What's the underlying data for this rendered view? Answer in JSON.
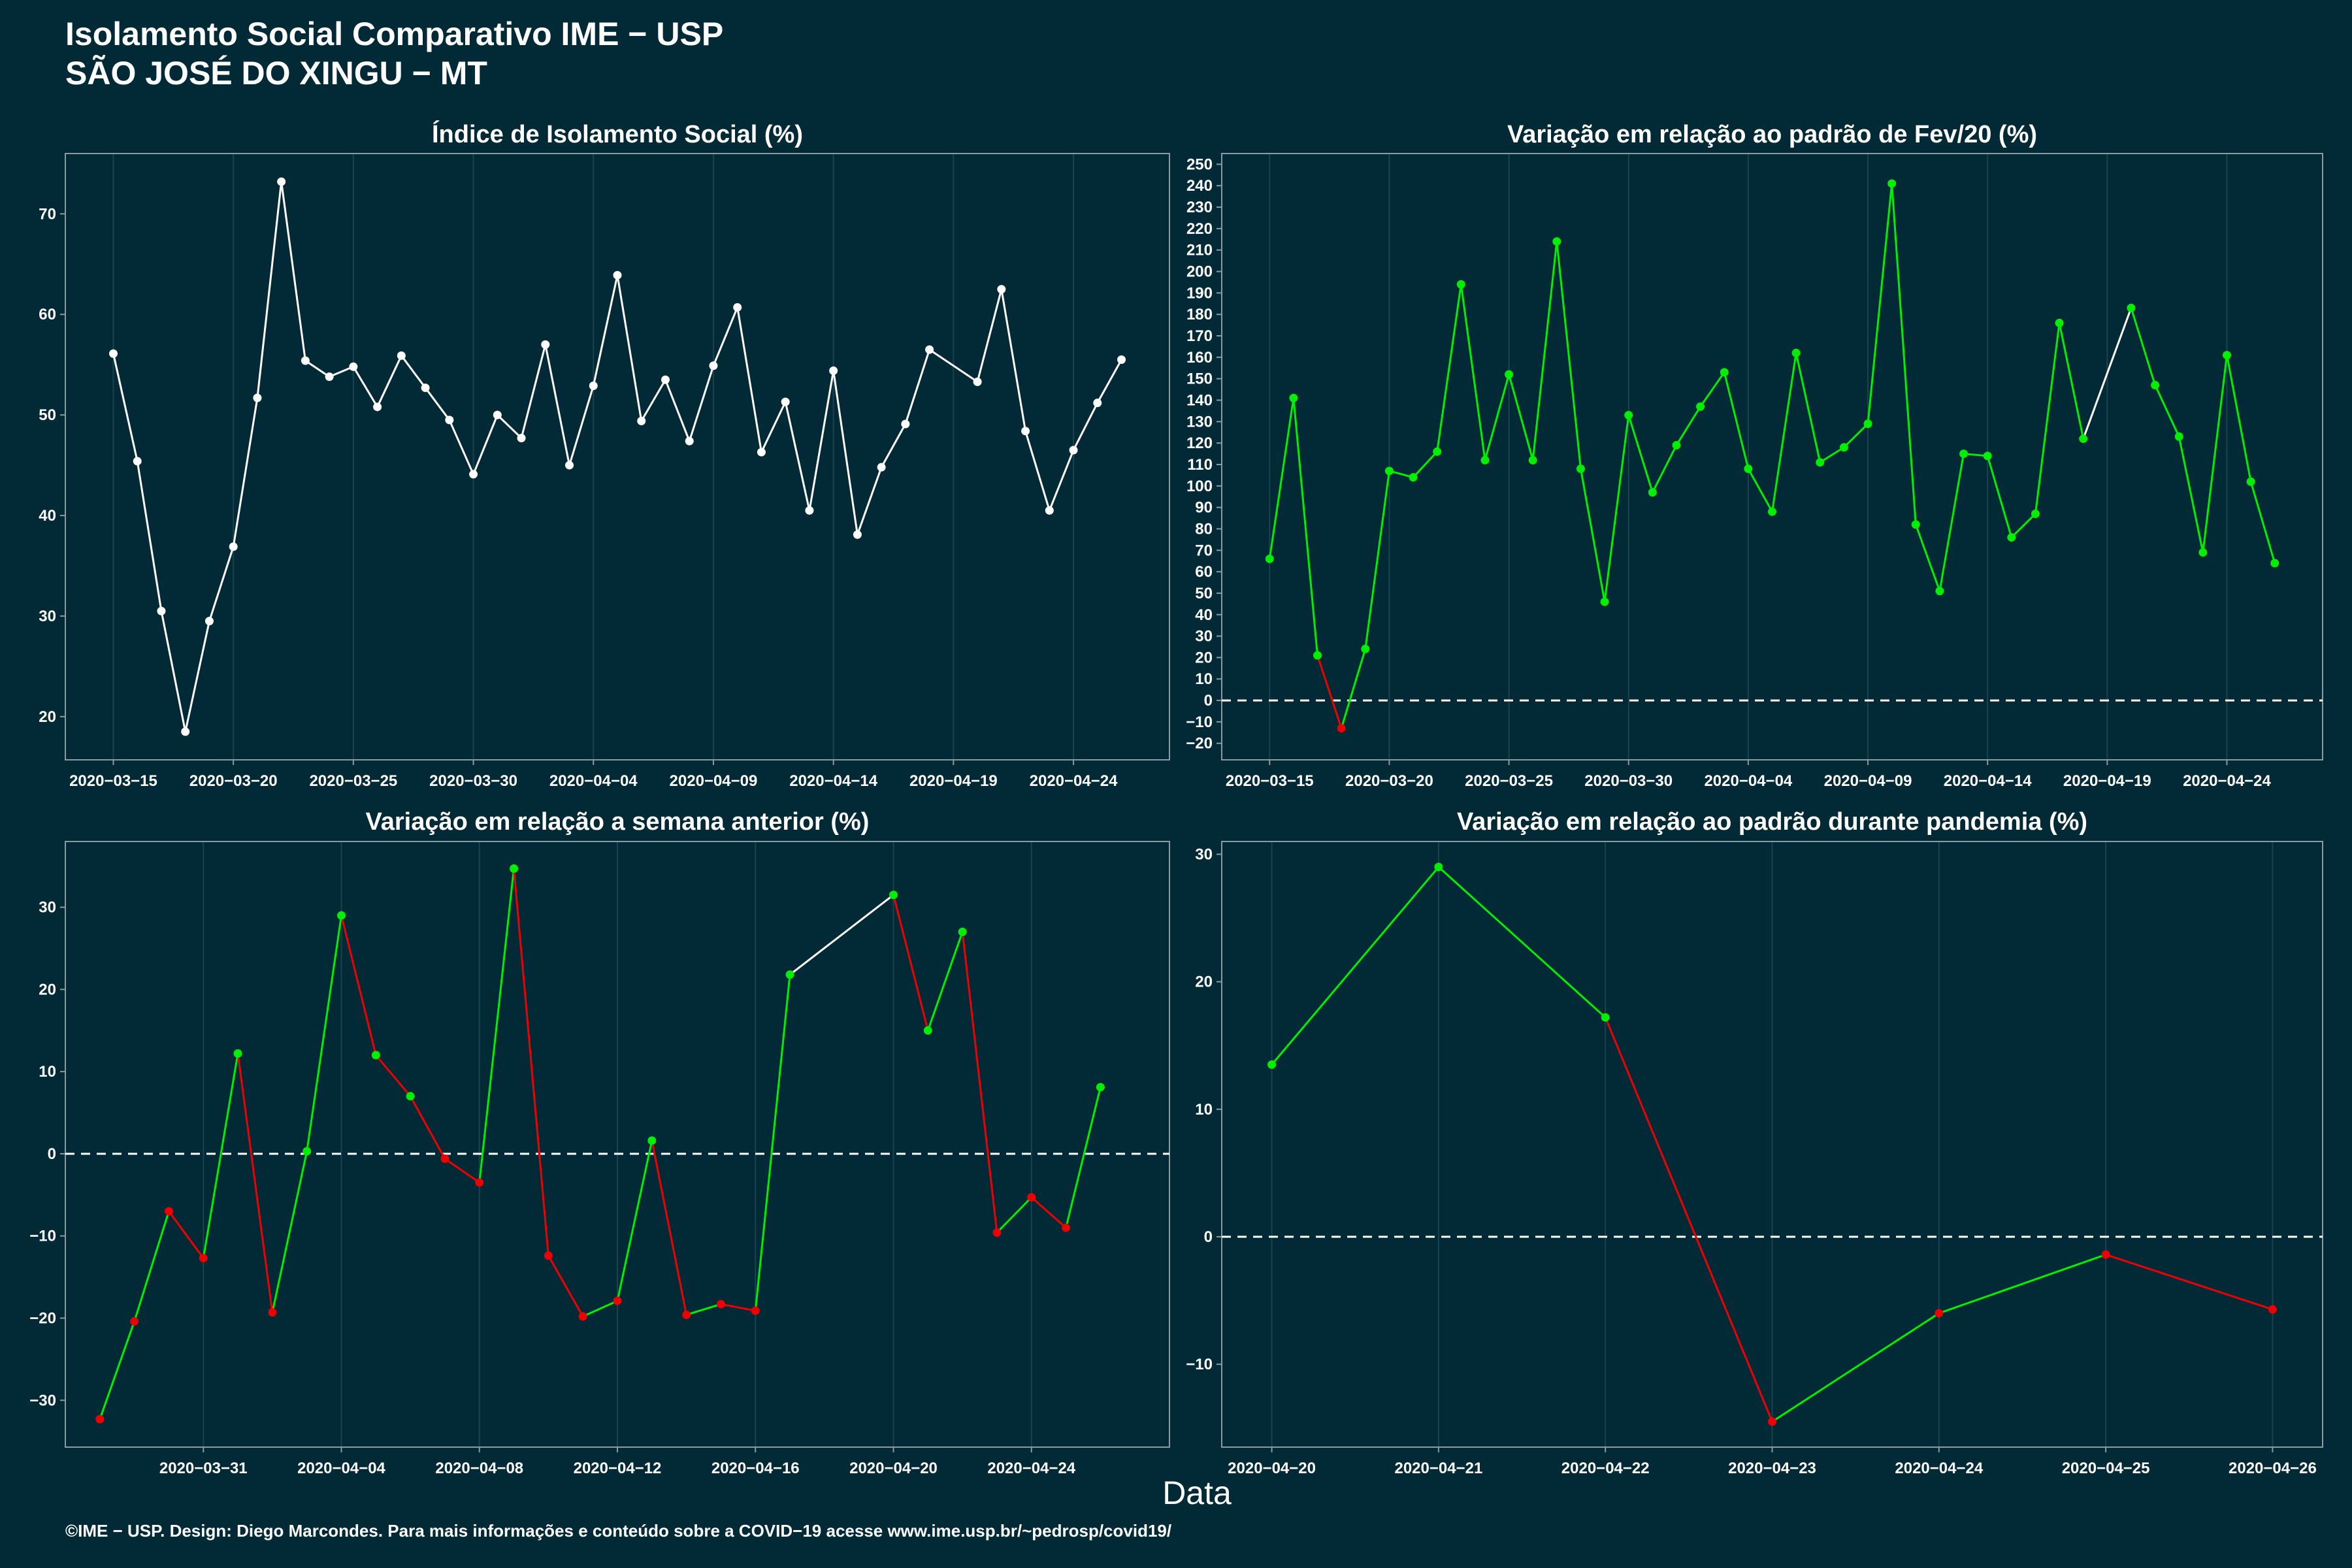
{
  "header": {
    "title_line1": "Isolamento Social Comparativo IME − USP",
    "title_line2": "SÃO JOSÉ DO XINGU − MT"
  },
  "footer": {
    "note": "©IME − USP. Design: Diego Marcondes. Para mais informações e conteúdo sobre a COVID−19 acesse www.ime.usp.br/~pedrosp/covid19/"
  },
  "colors": {
    "background": "#022a36",
    "grid": "#19434e",
    "frame": "#8a9ba1",
    "neutral_line": "#ffffff",
    "positive": "#00ee00",
    "negative": "#ee0000"
  },
  "chart_data": [
    {
      "type": "line",
      "title": "Índice de Isolamento Social (%)",
      "xlabel": "",
      "ylabel": "",
      "color_mode": "white",
      "zero_line": false,
      "grid": true,
      "xlim": [
        "2020-03-13",
        "2020-04-28"
      ],
      "ylim": [
        15.7,
        76.0
      ],
      "yticks": [
        20,
        30,
        40,
        50,
        60,
        70
      ],
      "xticks": [
        "2020-03-15",
        "2020-03-20",
        "2020-03-25",
        "2020-03-30",
        "2020-04-04",
        "2020-04-09",
        "2020-04-14",
        "2020-04-19",
        "2020-04-24"
      ],
      "series": [
        {
          "x": [
            "2020-03-15",
            "2020-03-16",
            "2020-03-17",
            "2020-03-18",
            "2020-03-19",
            "2020-03-20",
            "2020-03-21",
            "2020-03-22",
            "2020-03-23",
            "2020-03-24",
            "2020-03-25",
            "2020-03-26",
            "2020-03-27",
            "2020-03-28",
            "2020-03-29",
            "2020-03-30",
            "2020-03-31",
            "2020-04-01",
            "2020-04-02",
            "2020-04-03",
            "2020-04-04",
            "2020-04-05",
            "2020-04-06",
            "2020-04-07",
            "2020-04-08",
            "2020-04-09",
            "2020-04-10",
            "2020-04-11",
            "2020-04-12",
            "2020-04-13",
            "2020-04-14",
            "2020-04-15",
            "2020-04-16",
            "2020-04-17",
            "2020-04-18",
            "2020-04-20",
            "2020-04-21",
            "2020-04-22",
            "2020-04-23",
            "2020-04-24",
            "2020-04-25",
            "2020-04-26"
          ],
          "y": [
            56.1,
            45.4,
            30.5,
            18.5,
            29.5,
            36.9,
            51.7,
            73.2,
            55.4,
            53.8,
            54.8,
            50.8,
            55.9,
            52.7,
            49.5,
            44.1,
            50.0,
            47.7,
            57.0,
            45.0,
            52.9,
            63.9,
            49.4,
            53.5,
            47.4,
            54.9,
            60.7,
            46.3,
            51.3,
            40.5,
            54.4,
            38.1,
            44.8,
            49.1,
            56.5,
            53.3,
            62.5,
            48.4,
            40.5,
            46.5,
            51.2,
            55.5
          ]
        }
      ]
    },
    {
      "type": "line",
      "title": "Variação em relação ao padrão de Fev/20 (%)",
      "xlabel": "",
      "ylabel": "",
      "color_mode": "sign",
      "zero_line": true,
      "grid": true,
      "xlim": [
        "2020-03-13",
        "2020-04-28"
      ],
      "ylim": [
        -27.7,
        255.0
      ],
      "yticks": [
        -20,
        -10,
        0,
        10,
        20,
        30,
        40,
        50,
        60,
        70,
        80,
        90,
        100,
        110,
        120,
        130,
        140,
        150,
        160,
        170,
        180,
        190,
        200,
        210,
        220,
        230,
        240,
        250
      ],
      "xticks": [
        "2020-03-15",
        "2020-03-20",
        "2020-03-25",
        "2020-03-30",
        "2020-04-04",
        "2020-04-09",
        "2020-04-14",
        "2020-04-19",
        "2020-04-24"
      ],
      "series": [
        {
          "x": [
            "2020-03-15",
            "2020-03-16",
            "2020-03-17",
            "2020-03-18",
            "2020-03-19",
            "2020-03-20",
            "2020-03-21",
            "2020-03-22",
            "2020-03-23",
            "2020-03-24",
            "2020-03-25",
            "2020-03-26",
            "2020-03-27",
            "2020-03-28",
            "2020-03-29",
            "2020-03-30",
            "2020-03-31",
            "2020-04-01",
            "2020-04-02",
            "2020-04-03",
            "2020-04-04",
            "2020-04-05",
            "2020-04-06",
            "2020-04-07",
            "2020-04-08",
            "2020-04-09",
            "2020-04-10",
            "2020-04-11",
            "2020-04-12",
            "2020-04-13",
            "2020-04-14",
            "2020-04-15",
            "2020-04-16",
            "2020-04-17",
            "2020-04-18",
            "2020-04-20",
            "2020-04-21",
            "2020-04-22",
            "2020-04-23",
            "2020-04-24",
            "2020-04-25",
            "2020-04-26"
          ],
          "y": [
            66,
            141,
            21,
            -13,
            24,
            107,
            104,
            116,
            194,
            112,
            152,
            112,
            214,
            108,
            46,
            133,
            97,
            119,
            137,
            153,
            108,
            88,
            162,
            111,
            118,
            129,
            241,
            82,
            51,
            115,
            114,
            76,
            87,
            176,
            122,
            183,
            147,
            123,
            69,
            161,
            102,
            64
          ]
        }
      ]
    },
    {
      "type": "line",
      "title": "Variação em relação a semana anterior (%)",
      "xlabel": "",
      "ylabel": "",
      "color_mode": "trend",
      "zero_line": true,
      "grid": true,
      "xlim": [
        "2020-03-27",
        "2020-04-28"
      ],
      "ylim": [
        -35.7,
        38.0
      ],
      "yticks": [
        -30,
        -20,
        -10,
        0,
        10,
        20,
        30
      ],
      "xticks": [
        "2020-03-31",
        "2020-04-04",
        "2020-04-08",
        "2020-04-12",
        "2020-04-16",
        "2020-04-20",
        "2020-04-24"
      ],
      "series": [
        {
          "x": [
            "2020-03-28",
            "2020-03-29",
            "2020-03-30",
            "2020-03-31",
            "2020-04-01",
            "2020-04-02",
            "2020-04-03",
            "2020-04-04",
            "2020-04-05",
            "2020-04-06",
            "2020-04-07",
            "2020-04-08",
            "2020-04-09",
            "2020-04-10",
            "2020-04-11",
            "2020-04-12",
            "2020-04-13",
            "2020-04-14",
            "2020-04-15",
            "2020-04-16",
            "2020-04-17",
            "2020-04-18",
            "2020-04-20",
            "2020-04-21",
            "2020-04-22",
            "2020-04-23",
            "2020-04-24",
            "2020-04-25",
            "2020-04-26"
          ],
          "y": [
            -32.3,
            -20.4,
            -7.0,
            -12.7,
            12.2,
            -19.3,
            0.3,
            29.0,
            12.0,
            7.0,
            -0.6,
            -3.5,
            34.7,
            -12.4,
            -19.8,
            -17.9,
            1.6,
            -19.6,
            -18.3,
            -19.1,
            21.8,
            null,
            31.5,
            15.0,
            27.0,
            -9.6,
            -5.3,
            -9.0,
            8.1
          ]
        }
      ]
    },
    {
      "type": "line",
      "title": "Variação em relação ao padrão durante pandemia (%)",
      "xlabel": "",
      "ylabel": "",
      "color_mode": "sign",
      "zero_line": true,
      "grid": true,
      "xlim": [
        "2020-04-19.7",
        "2020-04-26.3"
      ],
      "ylim": [
        -16.5,
        31.0
      ],
      "yticks": [
        -10,
        0,
        10,
        20,
        30
      ],
      "xticks": [
        "2020-04-20",
        "2020-04-21",
        "2020-04-22",
        "2020-04-23",
        "2020-04-24",
        "2020-04-25",
        "2020-04-26"
      ],
      "series": [
        {
          "x": [
            "2020-04-20",
            "2020-04-21",
            "2020-04-22",
            "2020-04-23",
            "2020-04-24",
            "2020-04-25",
            "2020-04-26"
          ],
          "y": [
            13.5,
            29.0,
            17.2,
            -14.5,
            -6.0,
            -1.4,
            -5.7
          ]
        }
      ]
    }
  ],
  "shared_xlabel": "Data"
}
